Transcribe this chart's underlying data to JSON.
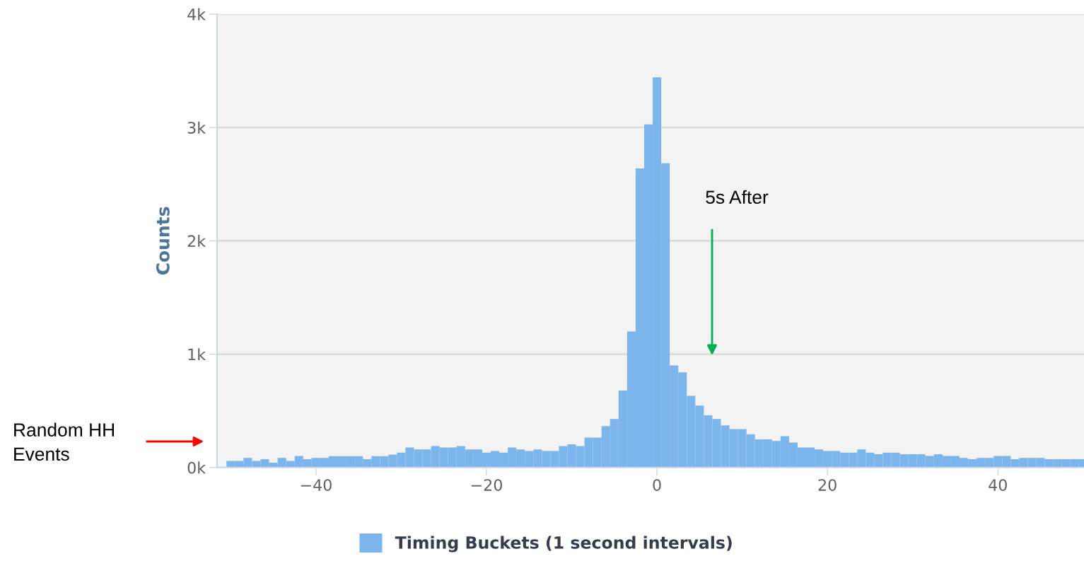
{
  "chart_data": {
    "type": "histogram",
    "ylabel": "Counts",
    "bins": [
      -50.5,
      -49.5,
      -48.5,
      -47.5,
      -46.5,
      -45.5,
      -44.5,
      -43.5,
      -42.5,
      -41.5,
      -40.5,
      -39.5,
      -38.5,
      -37.5,
      -36.5,
      -35.5,
      -34.5,
      -33.5,
      -32.5,
      -31.5,
      -30.5,
      -29.5,
      -28.5,
      -27.5,
      -26.5,
      -25.5,
      -24.5,
      -23.5,
      -22.5,
      -21.5,
      -20.5,
      -19.5,
      -18.5,
      -17.5,
      -16.5,
      -15.5,
      -14.5,
      -13.5,
      -12.5,
      -11.5,
      -10.5,
      -9.5,
      -8.5,
      -7.5,
      -6.5,
      -5.5,
      -4.5,
      -3.5,
      -2.5,
      -1.5,
      -0.5,
      0.5,
      1.5,
      2.5,
      3.5,
      4.5,
      5.5,
      6.5,
      7.5,
      8.5,
      9.5,
      10.5,
      11.5,
      12.5,
      13.5,
      14.5,
      15.5,
      16.5,
      17.5,
      18.5,
      19.5,
      20.5,
      21.5,
      22.5,
      23.5,
      24.5,
      25.5,
      26.5,
      27.5,
      28.5,
      29.5,
      30.5,
      31.5,
      32.5,
      33.5,
      34.5,
      35.5,
      36.5,
      37.5,
      38.5,
      39.5,
      40.5,
      41.5,
      42.5,
      43.5,
      44.5,
      45.5,
      46.5,
      47.5,
      48.5,
      49.5,
      50.5
    ],
    "series": [
      {
        "name": "Timing Buckets (1 second intervals)",
        "color": "#7cb5ec",
        "values": [
          58,
          58,
          85,
          58,
          73,
          42,
          85,
          58,
          102,
          73,
          85,
          85,
          100,
          100,
          100,
          100,
          73,
          100,
          100,
          114,
          131,
          176,
          160,
          160,
          189,
          176,
          176,
          189,
          160,
          160,
          131,
          145,
          131,
          176,
          160,
          145,
          160,
          145,
          145,
          189,
          204,
          189,
          264,
          264,
          366,
          428,
          679,
          1201,
          2639,
          3027,
          3443,
          2685,
          900,
          840,
          633,
          547,
          460,
          428,
          371,
          339,
          339,
          293,
          249,
          249,
          235,
          276,
          220,
          176,
          176,
          160,
          145,
          145,
          131,
          131,
          160,
          131,
          118,
          131,
          131,
          118,
          118,
          118,
          102,
          118,
          102,
          102,
          85,
          73,
          85,
          85,
          102,
          102,
          73,
          85,
          85,
          85,
          73,
          73,
          73,
          73,
          73
        ]
      }
    ],
    "xlim": [
      -51.6,
      50.1
    ],
    "xticks": [
      {
        "value": -40,
        "label": "−40"
      },
      {
        "value": -20,
        "label": "−20"
      },
      0,
      20,
      40
    ],
    "ylim": [
      0,
      4000
    ],
    "yticks": [
      {
        "value": 0,
        "label": "0k"
      },
      {
        "value": 1000,
        "label": "1k"
      },
      {
        "value": 2000,
        "label": "2k"
      },
      {
        "value": 3000,
        "label": "3k"
      },
      {
        "value": 4000,
        "label": "4k"
      }
    ],
    "grid": "y",
    "legend": "bottom",
    "annotations": [
      "5s After",
      "Random HH Events"
    ]
  }
}
